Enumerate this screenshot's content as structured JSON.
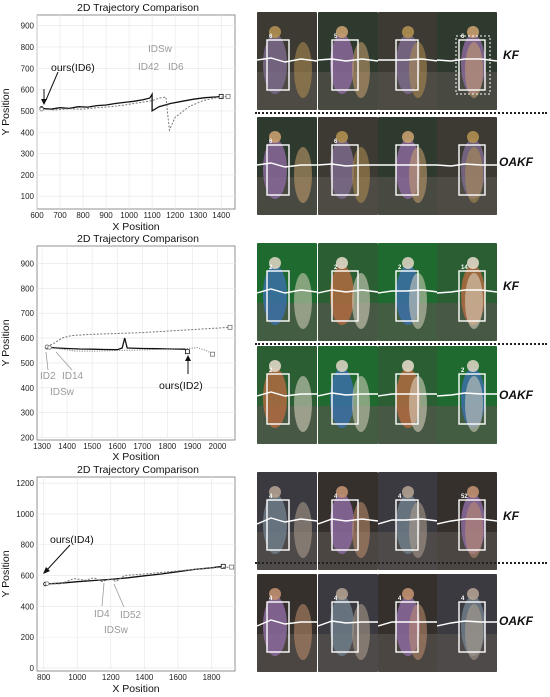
{
  "panels": [
    {
      "title": "2D Trajectory Comparison",
      "xlabel": "X Position",
      "ylabel": "Y Position",
      "xticks": [
        600,
        700,
        800,
        900,
        1000,
        1100,
        1200,
        1300,
        1400
      ],
      "yticks": [
        100,
        200,
        300,
        400,
        500,
        600,
        700,
        800,
        900
      ],
      "xlim": [
        600,
        1460
      ],
      "ylim": [
        40,
        950
      ],
      "ours_label": "ours(ID6)",
      "idsw_label": "IDSw",
      "id_a_label": "ID42",
      "id_b_label": "ID6",
      "rows": [
        "KF",
        "OAKF"
      ],
      "frame_ids": [
        [
          "6",
          "5",
          "",
          "6"
        ],
        [
          "6",
          "6",
          "",
          ""
        ]
      ]
    },
    {
      "title": "2D Trajectory Comparison",
      "xlabel": "X Position",
      "ylabel": "Y Position",
      "xticks": [
        1300,
        1400,
        1500,
        1600,
        1700,
        1800,
        1900,
        2000
      ],
      "yticks": [
        200,
        300,
        400,
        500,
        600,
        700,
        800,
        900
      ],
      "xlim": [
        1280,
        2070
      ],
      "ylim": [
        190,
        970
      ],
      "ours_label": "ours(ID2)",
      "idsw_label": "IDSw",
      "id_a_label": "ID2",
      "id_b_label": "ID14",
      "rows": [
        "KF",
        "OAKF"
      ],
      "frame_ids": [
        [
          "2",
          "2",
          "2",
          "14"
        ],
        [
          "2",
          "",
          "",
          "2"
        ]
      ]
    },
    {
      "title": "2D Trajectory Comparison",
      "xlabel": "X Position",
      "ylabel": "Y Position",
      "xticks": [
        800,
        1000,
        1200,
        1400,
        1600,
        1800
      ],
      "yticks": [
        0,
        200,
        400,
        600,
        800,
        1000,
        1200
      ],
      "xlim": [
        760,
        1940
      ],
      "ylim": [
        -20,
        1240
      ],
      "ours_label": "ours(ID4)",
      "idsw_label": "IDSw",
      "id_a_label": "ID4",
      "id_b_label": "ID52",
      "rows": [
        "KF",
        "OAKF"
      ],
      "frame_ids": [
        [
          "4",
          "4",
          "4",
          "52"
        ],
        [
          "4",
          "4",
          "4",
          "4"
        ]
      ]
    }
  ],
  "chart_data": [
    {
      "type": "line",
      "title": "2D Trajectory Comparison",
      "xlabel": "X Position",
      "ylabel": "Y Position",
      "xlim": [
        600,
        1460
      ],
      "ylim": [
        40,
        950
      ],
      "series": [
        {
          "x": [
            620,
            660,
            700,
            740,
            780,
            820,
            860,
            900,
            940,
            980,
            1020,
            1060,
            1090,
            1100,
            1100,
            1130,
            1180,
            1230,
            1280,
            1330,
            1380,
            1400
          ],
          "y": [
            512,
            508,
            515,
            512,
            520,
            518,
            525,
            528,
            535,
            540,
            545,
            552,
            560,
            578,
            500,
            520,
            535,
            545,
            555,
            562,
            566,
            568
          ]
        },
        {
          "x": [
            620,
            680,
            740,
            800,
            860,
            920,
            980,
            1040,
            1100,
            1130,
            1160,
            1175,
            1200,
            1260,
            1320,
            1380,
            1430
          ],
          "y": [
            508,
            505,
            510,
            508,
            515,
            520,
            528,
            538,
            548,
            560,
            565,
            410,
            470,
            520,
            548,
            562,
            568
          ]
        }
      ]
    },
    {
      "type": "line",
      "title": "2D Trajectory Comparison",
      "xlabel": "X Position",
      "ylabel": "Y Position",
      "xlim": [
        1280,
        2070
      ],
      "ylim": [
        190,
        970
      ],
      "series": [
        {
          "x": [
            1320,
            1360,
            1400,
            1450,
            1500,
            1550,
            1600,
            1620,
            1630,
            1640,
            1700,
            1760,
            1820,
            1870,
            1880
          ],
          "y": [
            563,
            560,
            558,
            556,
            555,
            554,
            553,
            560,
            600,
            560,
            558,
            557,
            556,
            555,
            545
          ]
        },
        {
          "x": [
            1320,
            1350,
            1380,
            1420,
            1500,
            1600,
            1700,
            1800,
            1900,
            2000,
            2050
          ],
          "y": [
            565,
            580,
            600,
            610,
            615,
            618,
            622,
            628,
            634,
            640,
            643
          ]
        },
        {
          "x": [
            1330,
            1380,
            1430,
            1500,
            1600,
            1700,
            1800,
            1880,
            1920,
            1960,
            1980
          ],
          "y": [
            562,
            555,
            548,
            547,
            550,
            552,
            556,
            558,
            562,
            548,
            535
          ]
        }
      ]
    },
    {
      "type": "line",
      "title": "2D Trajectory Comparison",
      "xlabel": "X Position",
      "ylabel": "Y Position",
      "xlim": [
        760,
        1940
      ],
      "ylim": [
        -20,
        1240
      ],
      "series": [
        {
          "x": [
            810,
            900,
            1000,
            1100,
            1200,
            1300,
            1400,
            1500,
            1600,
            1700,
            1800,
            1870
          ],
          "y": [
            545,
            550,
            560,
            568,
            575,
            585,
            598,
            610,
            625,
            640,
            650,
            660
          ]
        },
        {
          "x": [
            820,
            900,
            980,
            1050,
            1100,
            1150,
            1200,
            1230,
            1280,
            1400,
            1600,
            1800,
            1920
          ],
          "y": [
            548,
            546,
            580,
            570,
            585,
            560,
            580,
            560,
            600,
            610,
            630,
            650,
            655
          ]
        }
      ]
    }
  ]
}
